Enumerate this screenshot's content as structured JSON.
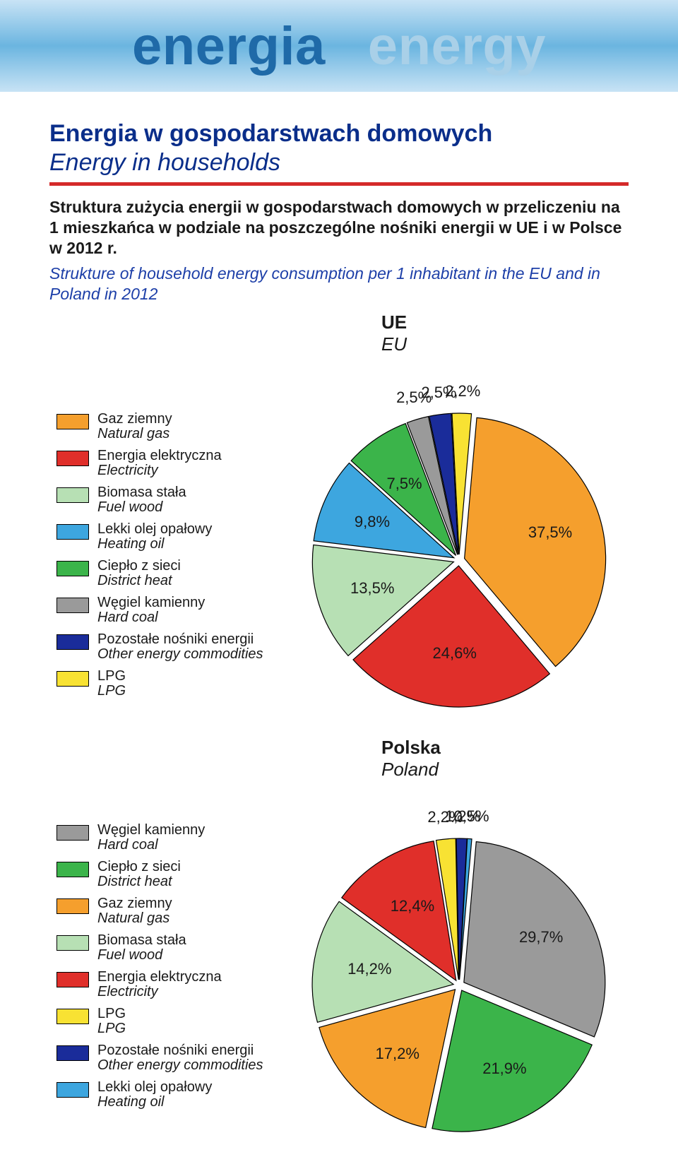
{
  "banner": {
    "word_left": "energia",
    "word_right": "energy",
    "left_color": "#1f6aa8",
    "right_color": "#a9d0e8",
    "bg_gradient": [
      "#c8e3f5",
      "#6bb5e0",
      "#c8e3f5"
    ],
    "fontsize": 76
  },
  "heading": {
    "title_pl": "Energia w gospodarstwach domowych",
    "title_en": "Energy in households",
    "title_color": "#0a2e8a",
    "rule_color": "#d42a2a"
  },
  "description": {
    "pl": "Struktura zużycia energii w gospodarstwach domowych w przeliczeniu na 1 mieszkańca w podziale na poszczególne nośniki energii w UE i w Polsce w 2012 r.",
    "en": "Strukture of household energy consumption per 1 inhabitant in the EU and in Poland in 2012",
    "en_color": "#1d3fa8"
  },
  "chart_eu": {
    "title_pl": "UE",
    "title_en": "EU",
    "type": "pie",
    "radius": 200,
    "explode": 8,
    "stroke": "#000000",
    "stroke_width": 1.2,
    "label_fontsize": 22,
    "slices": [
      {
        "key": "natural_gas",
        "value": 37.5,
        "label": "37,5%",
        "color": "#f59f2d"
      },
      {
        "key": "electricity",
        "value": 24.6,
        "label": "24,6%",
        "color": "#e02f2a"
      },
      {
        "key": "fuel_wood",
        "value": 13.5,
        "label": "13,5%",
        "color": "#b7e0b4"
      },
      {
        "key": "heating_oil",
        "value": 9.8,
        "label": "9,8%",
        "color": "#3da6df"
      },
      {
        "key": "district_heat",
        "value": 7.5,
        "label": "7,5%",
        "color": "#3bb44a"
      },
      {
        "key": "hard_coal",
        "value": 2.5,
        "label": "2,5%",
        "color": "#9a9a9a"
      },
      {
        "key": "other",
        "value": 2.5,
        "label": "2,5%",
        "color": "#1a2c9a"
      },
      {
        "key": "lpg",
        "value": 2.2,
        "label": "2,2%",
        "color": "#f8e233"
      }
    ],
    "legend": [
      {
        "pl": "Gaz ziemny",
        "en": "Natural gas",
        "color": "#f59f2d"
      },
      {
        "pl": "Energia elektryczna",
        "en": "Electricity",
        "color": "#e02f2a"
      },
      {
        "pl": "Biomasa stała",
        "en": "Fuel wood",
        "color": "#b7e0b4"
      },
      {
        "pl": "Lekki olej opałowy",
        "en": "Heating oil",
        "color": "#3da6df"
      },
      {
        "pl": "Ciepło z sieci",
        "en": "District heat",
        "color": "#3bb44a"
      },
      {
        "pl": "Węgiel kamienny",
        "en": "Hard coal",
        "color": "#9a9a9a"
      },
      {
        "pl": "Pozostałe nośniki energii",
        "en": "Other energy commodities",
        "color": "#1a2c9a"
      },
      {
        "pl": "LPG",
        "en": "LPG",
        "color": "#f8e233"
      }
    ]
  },
  "chart_pl": {
    "title_pl": "Polska",
    "title_en": "Poland",
    "type": "pie",
    "radius": 200,
    "explode": 8,
    "stroke": "#000000",
    "stroke_width": 1.2,
    "label_fontsize": 22,
    "slices": [
      {
        "key": "hard_coal",
        "value": 29.7,
        "label": "29,7%",
        "color": "#9a9a9a"
      },
      {
        "key": "district_heat",
        "value": 21.9,
        "label": "21,9%",
        "color": "#3bb44a"
      },
      {
        "key": "natural_gas",
        "value": 17.2,
        "label": "17,2%",
        "color": "#f59f2d"
      },
      {
        "key": "fuel_wood",
        "value": 14.2,
        "label": "14,2%",
        "color": "#b7e0b4"
      },
      {
        "key": "electricity",
        "value": 12.4,
        "label": "12,4%",
        "color": "#e02f2a"
      },
      {
        "key": "lpg",
        "value": 2.2,
        "label": "2,2%",
        "color": "#f8e233"
      },
      {
        "key": "other",
        "value": 1.2,
        "label": "1,2%",
        "color": "#1a2c9a"
      },
      {
        "key": "heating_oil",
        "value": 0.5,
        "label": "0,5%",
        "color": "#3da6df"
      }
    ],
    "legend": [
      {
        "pl": "Węgiel kamienny",
        "en": "Hard coal",
        "color": "#9a9a9a"
      },
      {
        "pl": "Ciepło z sieci",
        "en": "District heat",
        "color": "#3bb44a"
      },
      {
        "pl": "Gaz ziemny",
        "en": "Natural gas",
        "color": "#f59f2d"
      },
      {
        "pl": "Biomasa stała",
        "en": "Fuel wood",
        "color": "#b7e0b4"
      },
      {
        "pl": "Energia elektryczna",
        "en": "Electricity",
        "color": "#e02f2a"
      },
      {
        "pl": "LPG",
        "en": "LPG",
        "color": "#f8e233"
      },
      {
        "pl": "Pozostałe nośniki energii",
        "en": "Other energy commodities",
        "color": "#1a2c9a"
      },
      {
        "pl": "Lekki olej opałowy",
        "en": "Heating oil",
        "color": "#3da6df"
      }
    ]
  }
}
